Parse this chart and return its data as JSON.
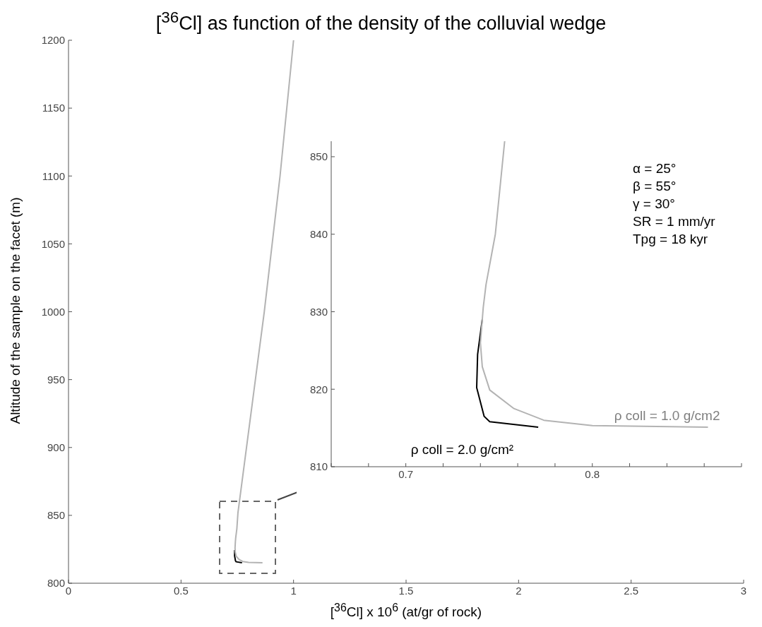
{
  "chart_data": [
    {
      "type": "line",
      "title": "[$^{36}$Cl] as function of the density of the colluvial wedge",
      "xlabel": "[$^{36}$Cl] x 10$^{6}$ (at/gr of rock)",
      "ylabel": "Altitude of the sample on the facet (m)",
      "xlim": [
        0,
        3
      ],
      "xticks": [
        0,
        0.5,
        1,
        1.5,
        2,
        2.5,
        3
      ],
      "ylim": [
        800,
        1200
      ],
      "yticks": [
        800,
        850,
        900,
        950,
        1000,
        1050,
        1100,
        1150,
        1200
      ],
      "grid": false,
      "marker": "none",
      "line_style": "solid",
      "series": [
        {
          "color": "#000000",
          "x": [
            0.771,
            0.745,
            0.742,
            0.738,
            0.7385
          ],
          "values": [
            815.1,
            815.8,
            816.5,
            820.2,
            824.5
          ]
        },
        {
          "color": "#b3b3b3",
          "x": [
            0.862,
            0.8,
            0.774,
            0.758,
            0.745,
            0.741,
            0.74,
            0.7415,
            0.743,
            0.748,
            0.753,
            0.87,
            0.94,
            1.0
          ],
          "values": [
            815.1,
            815.3,
            816,
            817.5,
            819.9,
            822.9,
            826,
            830.5,
            833.5,
            840,
            852,
            1000,
            1100,
            1200
          ]
        }
      ]
    },
    {
      "type": "line",
      "xlim": [
        0.66,
        0.88
      ],
      "xticks": [
        {
          "value": 0.66,
          "label": null
        },
        {
          "value": 0.68,
          "label": null
        },
        0.7,
        {
          "value": 0.72,
          "label": null
        },
        {
          "value": 0.74,
          "label": null
        },
        {
          "value": 0.76,
          "label": null
        },
        {
          "value": 0.78,
          "label": null
        },
        0.8,
        {
          "value": 0.82,
          "label": null
        },
        {
          "value": 0.84,
          "label": null
        },
        {
          "value": 0.86,
          "label": null
        },
        {
          "value": 0.88,
          "label": null
        }
      ],
      "ylim": [
        810,
        852
      ],
      "yticks": [
        810,
        820,
        830,
        840,
        850
      ],
      "grid": false,
      "marker": "none",
      "line_style": "solid",
      "annotations": [
        "α = 25°",
        "β = 55°",
        "γ = 30°",
        "SR = 1 mm/yr",
        "Tpg = 18 kyr"
      ],
      "series": [
        {
          "name": "ρ coll = 2.0 g/cm²",
          "color": "#000000",
          "x": [
            0.771,
            0.745,
            0.742,
            0.738,
            0.7385,
            0.741
          ],
          "values": [
            815.1,
            815.8,
            816.5,
            820.2,
            824.5,
            829
          ]
        },
        {
          "name": "ρ coll = 1.0 g/cm2",
          "color": "#b3b3b3",
          "x": [
            0.862,
            0.8,
            0.774,
            0.758,
            0.745,
            0.741,
            0.74,
            0.7415,
            0.743,
            0.748,
            0.753
          ],
          "values": [
            815.1,
            815.3,
            816,
            817.5,
            819.9,
            822.9,
            826,
            830.5,
            833.5,
            840,
            852
          ]
        }
      ]
    }
  ]
}
